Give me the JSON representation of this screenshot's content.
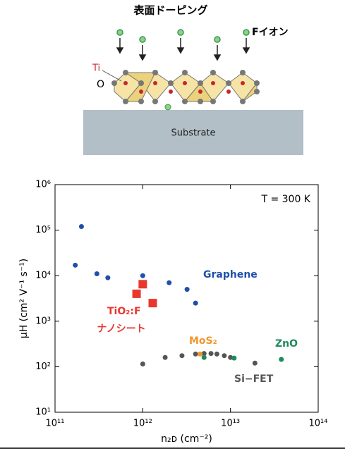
{
  "diagram": {
    "title": "表面ドーピング",
    "ion_label": "Fイオン",
    "ti_label": "Ti",
    "o_label": "O",
    "substrate_label": "Substrate"
  },
  "chart_data": {
    "type": "scatter",
    "log_x": true,
    "log_y": true,
    "xlabel": "n₂ᴅ (cm⁻²)",
    "ylabel": "μH (cm² V⁻¹ s⁻¹)",
    "xlim": [
      100000000000,
      100000000000000
    ],
    "xticks": [
      {
        "value": 100000000000,
        "label": "10¹¹"
      },
      {
        "value": 1000000000000,
        "label": "10¹²"
      },
      {
        "value": 10000000000000,
        "label": "10¹³"
      },
      {
        "value": 100000000000000,
        "label": "10¹⁴"
      }
    ],
    "ylim": [
      10,
      1000000
    ],
    "yticks": [
      {
        "value": 10,
        "label": "10¹"
      },
      {
        "value": 100,
        "label": "10²"
      },
      {
        "value": 1000,
        "label": "10³"
      },
      {
        "value": 10000,
        "label": "10⁴"
      },
      {
        "value": 100000,
        "label": "10⁵"
      },
      {
        "value": 1000000,
        "label": "10⁶"
      }
    ],
    "annotations": [
      {
        "text": "T = 300 K"
      },
      {
        "text": "ナノシート",
        "color": "#e8382e"
      }
    ],
    "series": [
      {
        "name": "Graphene",
        "color": "#1f4fa8",
        "marker": "circle",
        "x": [
          170000000000,
          200000000000,
          300000000000,
          400000000000,
          1000000000000,
          2000000000000,
          3200000000000,
          4000000000000
        ],
        "values": [
          17000,
          120000,
          11000,
          9000,
          10000,
          7000,
          5000,
          2500
        ]
      },
      {
        "name": "TiO₂:F",
        "color": "#e8382e",
        "marker": "square",
        "x": [
          850000000000,
          1000000000000,
          1300000000000
        ],
        "values": [
          4000,
          6500,
          2500
        ]
      },
      {
        "name": "Si−FET",
        "color": "#555555",
        "marker": "circle",
        "x": [
          1000000000000,
          1800000000000,
          2800000000000,
          4000000000000,
          5000000000000,
          6000000000000,
          7000000000000,
          8500000000000,
          10000000000000,
          19000000000000
        ],
        "values": [
          115,
          160,
          175,
          190,
          195,
          195,
          190,
          175,
          160,
          120
        ]
      },
      {
        "name": "MoS₂",
        "color": "#f0962e",
        "marker": "circle",
        "x": [
          4500000000000
        ],
        "values": [
          190
        ]
      },
      {
        "name": "ZnO",
        "color": "#1f8a5a",
        "marker": "circle",
        "x": [
          5000000000000,
          11000000000000,
          38000000000000
        ],
        "values": [
          160,
          155,
          145
        ]
      }
    ]
  }
}
